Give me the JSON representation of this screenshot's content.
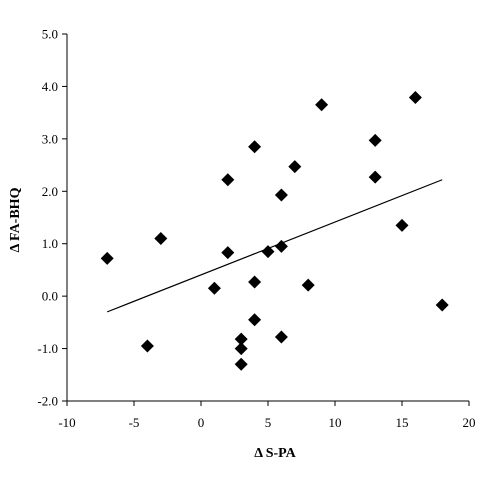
{
  "chart_data": {
    "type": "scatter",
    "title": "",
    "xlabel": "Δ  S-PA",
    "ylabel": "Δ FA-BHQ",
    "xlim": [
      -10,
      20
    ],
    "ylim": [
      -2.0,
      5.0
    ],
    "x_ticks": [
      "-10",
      "-5",
      "0",
      "5",
      "10",
      "15",
      "20"
    ],
    "y_ticks": [
      "-2.0",
      "-1.0",
      "0.0",
      "1.0",
      "2.0",
      "3.0",
      "4.0",
      "5.0"
    ],
    "grid": false,
    "legend": "none",
    "marker": "diamond",
    "marker_color": "#000000",
    "series": [
      {
        "points": [
          {
            "x": -7,
            "y": 0.72
          },
          {
            "x": -4,
            "y": -0.95
          },
          {
            "x": -3,
            "y": 1.1
          },
          {
            "x": 1,
            "y": 0.15
          },
          {
            "x": 2,
            "y": 2.22
          },
          {
            "x": 2,
            "y": 0.83
          },
          {
            "x": 3,
            "y": -0.82
          },
          {
            "x": 3,
            "y": -1.0
          },
          {
            "x": 3,
            "y": -1.3
          },
          {
            "x": 4,
            "y": 2.85
          },
          {
            "x": 4,
            "y": 0.27
          },
          {
            "x": 4,
            "y": -0.45
          },
          {
            "x": 5,
            "y": 0.85
          },
          {
            "x": 6,
            "y": 1.93
          },
          {
            "x": 6,
            "y": 0.95
          },
          {
            "x": 6,
            "y": -0.78
          },
          {
            "x": 7,
            "y": 2.47
          },
          {
            "x": 8,
            "y": 0.21
          },
          {
            "x": 9,
            "y": 3.65
          },
          {
            "x": 13,
            "y": 2.97
          },
          {
            "x": 13,
            "y": 2.27
          },
          {
            "x": 15,
            "y": 1.35
          },
          {
            "x": 16,
            "y": 3.79
          },
          {
            "x": 18,
            "y": -0.17
          }
        ]
      }
    ],
    "trendline": {
      "x": [
        -7,
        18
      ],
      "y": [
        -0.3,
        2.22
      ]
    }
  }
}
